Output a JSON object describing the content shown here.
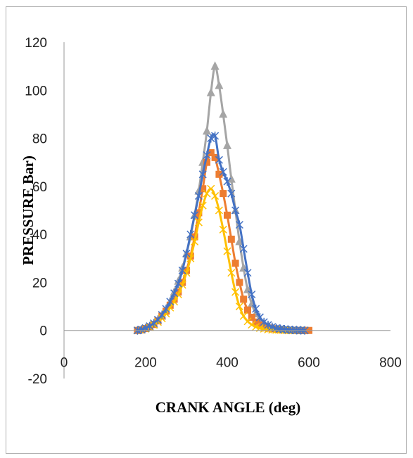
{
  "chart_data": {
    "type": "line",
    "title": "",
    "xlabel": "CRANK ANGLE (deg)",
    "ylabel": "PRESSURE Bar)",
    "xlim": [
      0,
      800
    ],
    "ylim": [
      -20,
      120
    ],
    "xticks": [
      0,
      200,
      400,
      600,
      800
    ],
    "yticks": [
      -20,
      0,
      20,
      40,
      60,
      80,
      100,
      120
    ],
    "grid": false,
    "legend": "none",
    "series": [
      {
        "color": "#a5a5a5",
        "marker": "triangle",
        "x": [
          180,
          190,
          200,
          210,
          220,
          230,
          240,
          250,
          260,
          270,
          280,
          290,
          300,
          310,
          320,
          330,
          340,
          350,
          360,
          370,
          380,
          390,
          400,
          410,
          420,
          430,
          440,
          450,
          460,
          470,
          480,
          490,
          500,
          510,
          520,
          530,
          540,
          550,
          560,
          570,
          580,
          590
        ],
        "values": [
          0,
          0.3,
          0.8,
          1.5,
          2.5,
          4,
          6,
          8.5,
          12,
          16,
          20.5,
          26,
          32,
          39,
          48,
          58,
          70,
          83,
          99,
          110,
          102,
          90,
          77,
          63,
          50,
          37,
          26,
          17,
          11,
          7,
          4.5,
          3,
          2,
          1.3,
          0.8,
          0.5,
          0.3,
          0.2,
          0.1,
          0.05,
          0,
          0
        ]
      },
      {
        "color": "#ed7d31",
        "marker": "square",
        "x": [
          180,
          190,
          200,
          210,
          220,
          230,
          240,
          250,
          260,
          270,
          280,
          290,
          300,
          310,
          320,
          330,
          340,
          350,
          360,
          370,
          380,
          390,
          400,
          410,
          420,
          430,
          440,
          450,
          460,
          470,
          480,
          490,
          500,
          510,
          520,
          530,
          540,
          550,
          560,
          570,
          580,
          590,
          600
        ],
        "values": [
          0,
          0.3,
          0.8,
          1.5,
          2.5,
          4,
          6,
          8,
          10.5,
          13,
          16,
          20,
          25,
          31,
          39,
          49,
          59,
          70,
          74,
          72,
          65,
          57,
          48,
          38,
          28,
          20,
          13,
          8.5,
          5.5,
          3.5,
          2.3,
          1.5,
          1,
          0.7,
          0.5,
          0.3,
          0.2,
          0.1,
          0.05,
          0,
          0,
          0,
          0
        ]
      },
      {
        "color": "#ffc000",
        "marker": "x",
        "x": [
          180,
          190,
          200,
          210,
          220,
          230,
          240,
          250,
          260,
          270,
          280,
          290,
          300,
          310,
          320,
          330,
          340,
          350,
          360,
          370,
          380,
          390,
          400,
          410,
          420,
          430,
          440,
          450,
          460,
          470,
          480,
          490,
          500,
          510,
          520,
          530,
          540,
          550,
          560,
          570,
          580,
          590
        ],
        "values": [
          0,
          0.3,
          0.7,
          1.4,
          2.3,
          3.5,
          5,
          7,
          9.5,
          12,
          15,
          19,
          24,
          30,
          37,
          45,
          52,
          57,
          59,
          56,
          50,
          42,
          33,
          24,
          16,
          10,
          6,
          3.8,
          2.4,
          1.5,
          1,
          0.7,
          0.4,
          0.3,
          0.2,
          0.1,
          0.05,
          0,
          0,
          0,
          0,
          0
        ]
      },
      {
        "color": "#4472c4",
        "marker": "star",
        "x": [
          180,
          190,
          200,
          210,
          220,
          230,
          240,
          250,
          260,
          270,
          280,
          290,
          300,
          310,
          320,
          330,
          340,
          350,
          360,
          370,
          380,
          390,
          400,
          410,
          420,
          430,
          440,
          450,
          460,
          470,
          480,
          490,
          500,
          510,
          520,
          530,
          540,
          550,
          560,
          570,
          580,
          590
        ],
        "values": [
          0,
          0.4,
          1,
          1.8,
          3,
          4.5,
          6.5,
          9,
          12,
          15.5,
          19.5,
          25,
          32,
          40,
          48,
          56,
          65,
          73,
          80,
          81,
          71,
          66,
          62,
          57,
          50,
          44,
          34,
          24,
          15,
          9,
          5.5,
          3.5,
          2.3,
          1.5,
          1,
          0.7,
          0.5,
          0.3,
          0.2,
          0.1,
          0.05,
          0
        ]
      }
    ]
  }
}
